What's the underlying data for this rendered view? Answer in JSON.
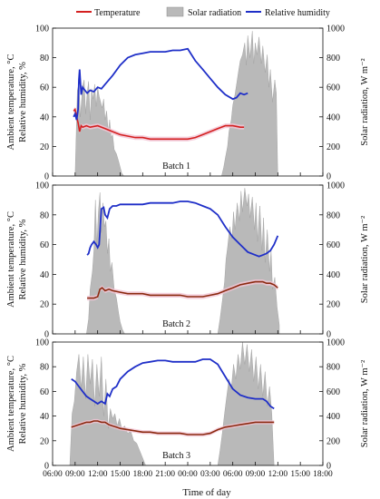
{
  "legend": {
    "temperature_label": "Temperature",
    "solar_label": "Solar radiation",
    "humidity_label": "Relative humidity"
  },
  "colors": {
    "temperature": "#d42020",
    "temperature_dark": "#8b2a10",
    "temperature_band": "#f2c6d6",
    "solar": "#b9b9b9",
    "humidity": "#1f2fc8"
  },
  "axes": {
    "left_label_line1": "Ambient temperature, °C",
    "left_label_line2": "Relative humidity, %",
    "right_label": "Solar radiation, W m⁻²",
    "x_label": "Time of day",
    "x_ticks": [
      "06:00",
      "09:00",
      "12:00",
      "15:00",
      "18:00",
      "21:00",
      "00:00",
      "03:00",
      "06:00",
      "09:00",
      "12:00",
      "15:00",
      "18:00"
    ],
    "left_ticks": [
      0,
      20,
      40,
      60,
      80,
      100
    ],
    "right_ticks": [
      0,
      200,
      400,
      600,
      800,
      1000
    ]
  },
  "chart_data": [
    {
      "type": "line",
      "title": "Batch 1",
      "x_unit": "hours from 06:00 day 1",
      "xlim": [
        0,
        36
      ],
      "ylim_left": [
        0,
        100
      ],
      "ylim_right": [
        0,
        1000
      ],
      "series": [
        {
          "name": "Relative humidity",
          "axis": "left",
          "x": [
            2.8,
            3.0,
            3.2,
            3.4,
            3.5,
            3.6,
            3.8,
            4.0,
            4.3,
            4.6,
            5.0,
            5.5,
            6.0,
            6.5,
            7.0,
            8.0,
            9.0,
            10.0,
            11.0,
            12.0,
            13.0,
            14.0,
            15.0,
            16.0,
            17.0,
            18.0,
            19.0,
            20.0,
            21.0,
            22.0,
            23.0,
            24.0,
            24.5,
            25.0,
            25.5,
            26.0,
            27.0,
            28.0,
            29.0,
            30.0,
            30.5
          ],
          "y": [
            40,
            42,
            38,
            45,
            65,
            72,
            55,
            60,
            58,
            56,
            58,
            57,
            60,
            59,
            62,
            68,
            75,
            80,
            82,
            83,
            84,
            84,
            84,
            85,
            85,
            86,
            78,
            72,
            66,
            60,
            55,
            52,
            53,
            56,
            55,
            56,
            null,
            null,
            null,
            null,
            null
          ]
        },
        {
          "name": "Temperature",
          "axis": "left",
          "x": [
            2.8,
            3.0,
            3.2,
            3.4,
            3.6,
            3.8,
            4.0,
            4.5,
            5.0,
            6.0,
            7.0,
            8.0,
            9.0,
            10.0,
            11.0,
            12.0,
            13.0,
            14.0,
            15.0,
            16.0,
            17.0,
            18.0,
            19.0,
            20.0,
            21.0,
            22.0,
            23.0,
            24.0,
            25.0,
            25.5
          ],
          "y": [
            44,
            45,
            40,
            36,
            30,
            34,
            33,
            34,
            33,
            34,
            32,
            30,
            28,
            27,
            26,
            26,
            25,
            25,
            25,
            25,
            25,
            25,
            26,
            28,
            30,
            32,
            34,
            34,
            33,
            33
          ]
        },
        {
          "name": "Solar radiation",
          "axis": "right",
          "x": [
            3.0,
            3.3,
            3.5,
            3.7,
            4.0,
            4.2,
            4.4,
            4.6,
            4.8,
            5.0,
            5.2,
            5.4,
            5.6,
            5.8,
            6.0,
            6.2,
            6.4,
            6.6,
            6.8,
            7.0,
            7.2,
            7.4,
            7.6,
            7.8,
            8.0,
            8.2,
            8.5,
            8.8,
            9.0,
            9.2,
            9.5,
            22.5,
            22.8,
            23.0,
            23.3,
            23.5,
            23.8,
            24.0,
            24.3,
            24.6,
            24.8,
            25.0,
            25.3,
            25.6,
            25.8,
            26.0,
            26.3,
            26.6,
            26.8,
            27.0,
            27.2,
            27.5,
            27.8,
            28.0,
            28.3,
            28.6,
            28.8,
            29.0,
            29.3,
            29.6,
            29.8,
            30.0
          ],
          "y": [
            0,
            580,
            620,
            400,
            610,
            650,
            420,
            560,
            640,
            380,
            590,
            520,
            620,
            470,
            600,
            540,
            500,
            460,
            520,
            380,
            440,
            300,
            380,
            260,
            280,
            180,
            150,
            100,
            60,
            20,
            0,
            0,
            60,
            120,
            200,
            300,
            380,
            480,
            550,
            650,
            720,
            780,
            820,
            900,
            750,
            950,
            800,
            980,
            760,
            900,
            820,
            940,
            760,
            880,
            700,
            820,
            600,
            720,
            500,
            650,
            560,
            0
          ]
        }
      ]
    },
    {
      "type": "line",
      "title": "Batch 2",
      "x_unit": "hours from 06:00 day 1",
      "xlim": [
        0,
        36
      ],
      "ylim_left": [
        0,
        100
      ],
      "ylim_right": [
        0,
        1000
      ],
      "series": [
        {
          "name": "Relative humidity",
          "axis": "left",
          "x": [
            4.6,
            4.8,
            5.0,
            5.2,
            5.5,
            5.8,
            6.0,
            6.2,
            6.5,
            6.8,
            7.0,
            7.3,
            7.6,
            8.0,
            8.5,
            9.0,
            10.0,
            11.0,
            12.0,
            13.0,
            14.0,
            15.0,
            16.0,
            17.0,
            18.0,
            19.0,
            20.0,
            21.0,
            22.0,
            23.0,
            24.0,
            25.0,
            26.0,
            27.0,
            27.5,
            28.0,
            28.5,
            29.0,
            29.5,
            30.0
          ],
          "y": [
            53,
            54,
            58,
            60,
            62,
            60,
            58,
            60,
            84,
            85,
            80,
            78,
            84,
            86,
            86,
            87,
            87,
            87,
            87,
            88,
            88,
            88,
            88,
            89,
            89,
            88,
            86,
            84,
            80,
            72,
            65,
            60,
            55,
            53,
            52,
            53,
            54,
            56,
            60,
            66
          ]
        },
        {
          "name": "Temperature",
          "axis": "left",
          "x": [
            4.6,
            5.0,
            5.5,
            6.0,
            6.3,
            6.6,
            7.0,
            7.5,
            8.0,
            9.0,
            10.0,
            11.0,
            12.0,
            13.0,
            14.0,
            15.0,
            16.0,
            17.0,
            18.0,
            19.0,
            20.0,
            21.0,
            22.0,
            23.0,
            24.0,
            25.0,
            26.0,
            27.0,
            27.5,
            28.0,
            28.5,
            29.0,
            29.5,
            30.0
          ],
          "y": [
            24,
            24,
            24,
            25,
            30,
            31,
            29,
            30,
            29,
            28,
            27,
            27,
            27,
            26,
            26,
            26,
            26,
            26,
            25,
            25,
            25,
            26,
            27,
            29,
            31,
            33,
            34,
            35,
            35,
            35,
            34,
            34,
            33,
            31
          ]
        },
        {
          "name": "Solar radiation",
          "axis": "right",
          "x": [
            4.5,
            4.8,
            5.0,
            5.3,
            5.5,
            5.7,
            5.9,
            6.1,
            6.3,
            6.5,
            6.7,
            6.9,
            7.1,
            7.3,
            7.5,
            7.7,
            7.9,
            8.2,
            8.5,
            8.8,
            9.0,
            9.3,
            9.6,
            22.0,
            22.3,
            22.6,
            22.9,
            23.1,
            23.3,
            23.6,
            23.9,
            24.1,
            24.3,
            24.6,
            24.9,
            25.1,
            25.3,
            25.6,
            25.9,
            26.1,
            26.3,
            26.6,
            26.9,
            27.1,
            27.3,
            27.6,
            27.9,
            28.1,
            28.3,
            28.6,
            28.9,
            29.1,
            29.3,
            29.6,
            29.9,
            30.2
          ],
          "y": [
            0,
            100,
            300,
            420,
            560,
            900,
            600,
            820,
            950,
            680,
            880,
            720,
            760,
            540,
            640,
            420,
            480,
            300,
            240,
            140,
            80,
            30,
            0,
            0,
            100,
            220,
            350,
            500,
            580,
            720,
            640,
            820,
            700,
            880,
            760,
            960,
            820,
            980,
            860,
            940,
            780,
            920,
            700,
            880,
            620,
            860,
            560,
            780,
            480,
            700,
            420,
            560,
            300,
            380,
            180,
            60
          ]
        }
      ]
    },
    {
      "type": "line",
      "title": "Batch 3",
      "x_unit": "hours from 06:00 day 1",
      "xlim": [
        0,
        36
      ],
      "ylim_left": [
        0,
        100
      ],
      "ylim_right": [
        0,
        1000
      ],
      "series": [
        {
          "name": "Relative humidity",
          "axis": "left",
          "x": [
            2.5,
            3.0,
            3.5,
            4.0,
            4.5,
            5.0,
            5.5,
            6.0,
            6.5,
            7.0,
            7.3,
            7.6,
            8.0,
            8.5,
            9.0,
            10.0,
            11.0,
            12.0,
            13.0,
            14.0,
            15.0,
            16.0,
            17.0,
            18.0,
            19.0,
            20.0,
            21.0,
            22.0,
            23.0,
            24.0,
            25.0,
            26.0,
            27.0,
            28.0,
            28.5,
            29.0,
            29.5
          ],
          "y": [
            70,
            68,
            64,
            60,
            56,
            54,
            52,
            50,
            52,
            50,
            58,
            56,
            62,
            64,
            70,
            76,
            80,
            83,
            84,
            85,
            85,
            84,
            84,
            84,
            84,
            86,
            86,
            82,
            72,
            62,
            57,
            55,
            54,
            54,
            52,
            48,
            46
          ]
        },
        {
          "name": "Temperature",
          "axis": "left",
          "x": [
            2.5,
            3.0,
            3.5,
            4.0,
            4.5,
            5.0,
            5.5,
            6.0,
            6.5,
            7.0,
            7.5,
            8.0,
            8.5,
            9.0,
            10.0,
            11.0,
            12.0,
            13.0,
            14.0,
            15.0,
            16.0,
            17.0,
            18.0,
            19.0,
            20.0,
            21.0,
            22.0,
            23.0,
            24.0,
            25.0,
            26.0,
            27.0,
            28.0,
            29.0,
            29.5
          ],
          "y": [
            31,
            32,
            33,
            34,
            35,
            35,
            36,
            36,
            35,
            35,
            33,
            32,
            31,
            30,
            29,
            28,
            27,
            27,
            26,
            26,
            26,
            26,
            25,
            25,
            25,
            26,
            29,
            31,
            32,
            33,
            34,
            35,
            35,
            35,
            35
          ]
        },
        {
          "name": "Solar radiation",
          "axis": "right",
          "x": [
            2.3,
            2.6,
            2.9,
            3.2,
            3.5,
            3.8,
            4.1,
            4.4,
            4.7,
            5.0,
            5.3,
            5.6,
            5.9,
            6.2,
            6.5,
            6.8,
            7.1,
            7.4,
            7.7,
            8.0,
            8.3,
            8.6,
            8.9,
            9.2,
            9.6,
            10.0,
            10.4,
            10.8,
            11.2,
            11.6,
            12.0,
            12.4,
            22.0,
            22.3,
            22.6,
            22.9,
            23.2,
            23.5,
            23.8,
            24.1,
            24.4,
            24.7,
            25.0,
            25.3,
            25.6,
            25.9,
            26.2,
            26.5,
            26.8,
            27.1,
            27.4,
            27.7,
            28.0,
            28.3,
            28.6,
            28.9,
            29.2,
            29.5
          ],
          "y": [
            0,
            420,
            520,
            760,
            900,
            620,
            880,
            540,
            900,
            660,
            860,
            480,
            820,
            560,
            880,
            400,
            700,
            300,
            460,
            380,
            420,
            320,
            380,
            300,
            320,
            260,
            280,
            200,
            180,
            120,
            60,
            0,
            0,
            120,
            260,
            420,
            560,
            700,
            620,
            820,
            700,
            900,
            780,
            1000,
            820,
            980,
            760,
            940,
            680,
            880,
            620,
            820,
            560,
            760,
            480,
            640,
            420,
            0
          ]
        }
      ]
    }
  ]
}
